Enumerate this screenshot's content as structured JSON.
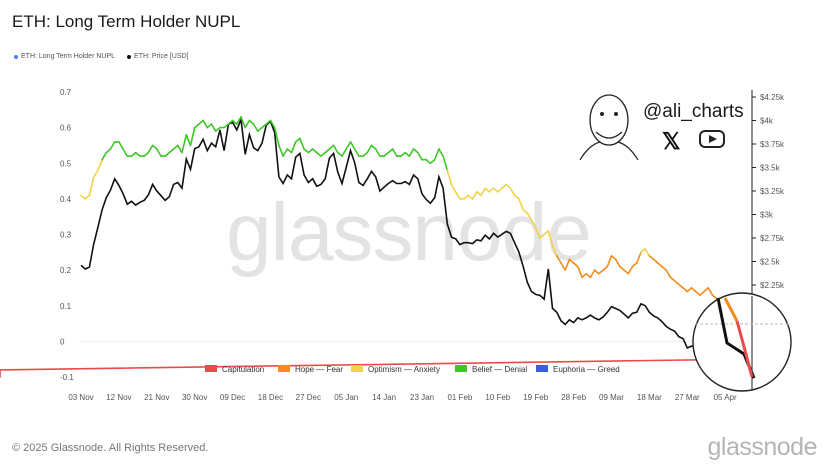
{
  "title": "ETH: Long Term Holder NUPL",
  "legend_top": [
    {
      "label": "ETH: Long Term Holder NUPL",
      "color": "#4a7bff"
    },
    {
      "label": "ETH: Price [USD]",
      "color": "#111111"
    }
  ],
  "watermark": "glassnode",
  "footer": "© 2025 Glassnode. All Rights Reserved.",
  "brand": "glassnode",
  "social": {
    "handle": "@ali_charts",
    "x_icon": "x-logo-icon",
    "youtube_icon": "youtube-icon"
  },
  "chart_data": {
    "type": "line",
    "x_tick_labels": [
      "03 Nov",
      "12 Nov",
      "21 Nov",
      "30 Nov",
      "09 Dec",
      "18 Dec",
      "27 Dec",
      "05 Jan",
      "14 Jan",
      "23 Jan",
      "01 Feb",
      "10 Feb",
      "19 Feb",
      "28 Feb",
      "09 Mar",
      "18 Mar",
      "27 Mar",
      "05 Apr"
    ],
    "y_left": {
      "ticks": [
        0.7,
        0.6,
        0.5,
        0.4,
        0.3,
        0.2,
        0.1,
        0,
        -0.1
      ],
      "labels": [
        "0.7",
        "0.6",
        "0.5",
        "0.4",
        "0.3",
        "0.2",
        "0.1",
        "0",
        "-0.1"
      ],
      "range": [
        -0.1,
        0.7
      ]
    },
    "y_right": {
      "ticks": [
        4250,
        4000,
        3750,
        3500,
        3250,
        3000,
        2750,
        2500,
        2250
      ],
      "labels": [
        "$4.25k",
        "$4k",
        "$3.75k",
        "$3.5k",
        "$3.25k",
        "$3k",
        "$2.75k",
        "$2.5k",
        "$2.25k"
      ]
    },
    "nupl_days": [
      0,
      1,
      2,
      3,
      4,
      5,
      6,
      7,
      8,
      9,
      10,
      11,
      12,
      13,
      14,
      15,
      16,
      17,
      18,
      19,
      20,
      21,
      22,
      23,
      24,
      25,
      26,
      27,
      28,
      29,
      30,
      31,
      32,
      33,
      34,
      35,
      36,
      37,
      38,
      39,
      40,
      41,
      42,
      43,
      44,
      45,
      46,
      47,
      48,
      49,
      50,
      51,
      52,
      53,
      54,
      55,
      56,
      57,
      58,
      59,
      60,
      61,
      62,
      63,
      64,
      65,
      66,
      67,
      68,
      69,
      70,
      71,
      72,
      73,
      74,
      75,
      76,
      77,
      78,
      79,
      80,
      81,
      82,
      83,
      84,
      85,
      86,
      87,
      88,
      89,
      90,
      91,
      92,
      93,
      94,
      95,
      96,
      97,
      98,
      99,
      100,
      101,
      102,
      103,
      104,
      105,
      106,
      107,
      108,
      109,
      110,
      111,
      112,
      113,
      114,
      115,
      116,
      117,
      118,
      119,
      120,
      121,
      122,
      123,
      124,
      125,
      126,
      127,
      128,
      129,
      130,
      131,
      132,
      133,
      134,
      135,
      136,
      137,
      138,
      139,
      140,
      141,
      142,
      143,
      144,
      145,
      146,
      147,
      148,
      149,
      150,
      151,
      152,
      153,
      154,
      155,
      156,
      157
    ],
    "nupl": [
      0.41,
      0.4,
      0.41,
      0.46,
      0.48,
      0.51,
      0.53,
      0.54,
      0.56,
      0.56,
      0.54,
      0.52,
      0.52,
      0.53,
      0.52,
      0.52,
      0.53,
      0.55,
      0.54,
      0.52,
      0.52,
      0.53,
      0.54,
      0.55,
      0.53,
      0.58,
      0.55,
      0.6,
      0.61,
      0.62,
      0.6,
      0.61,
      0.59,
      0.6,
      0.6,
      0.61,
      0.62,
      0.61,
      0.63,
      0.6,
      0.62,
      0.61,
      0.59,
      0.6,
      0.61,
      0.62,
      0.6,
      0.55,
      0.52,
      0.54,
      0.53,
      0.56,
      0.57,
      0.54,
      0.53,
      0.54,
      0.53,
      0.52,
      0.53,
      0.54,
      0.55,
      0.53,
      0.52,
      0.54,
      0.56,
      0.54,
      0.52,
      0.52,
      0.53,
      0.55,
      0.54,
      0.52,
      0.52,
      0.53,
      0.54,
      0.52,
      0.52,
      0.53,
      0.52,
      0.54,
      0.53,
      0.51,
      0.51,
      0.5,
      0.51,
      0.54,
      0.52,
      0.48,
      0.44,
      0.42,
      0.4,
      0.4,
      0.41,
      0.4,
      0.42,
      0.41,
      0.43,
      0.42,
      0.43,
      0.42,
      0.43,
      0.44,
      0.43,
      0.41,
      0.4,
      0.37,
      0.36,
      0.34,
      0.32,
      0.29,
      0.3,
      0.31,
      0.27,
      0.24,
      0.22,
      0.2,
      0.23,
      0.22,
      0.21,
      0.18,
      0.19,
      0.18,
      0.2,
      0.19,
      0.2,
      0.21,
      0.24,
      0.23,
      0.21,
      0.2,
      0.19,
      0.21,
      0.22,
      0.25,
      0.26,
      0.24,
      0.23,
      0.22,
      0.21,
      0.2,
      0.18,
      0.17,
      0.16,
      0.15,
      0.14,
      0.15,
      0.14,
      0.13,
      0.14,
      0.15,
      0.13,
      0.12,
      0.11,
      0.05,
      0.03,
      0.01,
      -0.02,
      -0.05,
      -0.08,
      -0.1
    ],
    "price_days": [
      0,
      1,
      2,
      3,
      4,
      5,
      6,
      7,
      8,
      9,
      10,
      11,
      12,
      13,
      14,
      15,
      16,
      17,
      18,
      19,
      20,
      21,
      22,
      23,
      24,
      25,
      26,
      27,
      28,
      29,
      30,
      31,
      32,
      33,
      34,
      35,
      36,
      37,
      38,
      39,
      40,
      41,
      42,
      43,
      44,
      45,
      46,
      47,
      48,
      49,
      50,
      51,
      52,
      53,
      54,
      55,
      56,
      57,
      58,
      59,
      60,
      61,
      62,
      63,
      64,
      65,
      66,
      67,
      68,
      69,
      70,
      71,
      72,
      73,
      74,
      75,
      76,
      77,
      78,
      79,
      80,
      81,
      82,
      83,
      84,
      85,
      86,
      87,
      88,
      89,
      90,
      91,
      92,
      93,
      94,
      95,
      96,
      97,
      98,
      99,
      100,
      101,
      102,
      103,
      104,
      105,
      106,
      107,
      108,
      109,
      110,
      111,
      112,
      113,
      114,
      115,
      116,
      117,
      118,
      119,
      120,
      121,
      122,
      123,
      124,
      125,
      126,
      127,
      128,
      129,
      130,
      131,
      132,
      133,
      134,
      135,
      136,
      137,
      138,
      139,
      140,
      141,
      142,
      143,
      144,
      145,
      146,
      147,
      148,
      149,
      150,
      151,
      152,
      153,
      154,
      155,
      156,
      157
    ],
    "price": [
      2460,
      2420,
      2440,
      2680,
      2860,
      3050,
      3180,
      3260,
      3380,
      3310,
      3220,
      3110,
      3140,
      3100,
      3130,
      3150,
      3210,
      3320,
      3250,
      3200,
      3150,
      3190,
      3320,
      3340,
      3280,
      3590,
      3480,
      3700,
      3720,
      3800,
      3680,
      3760,
      3720,
      3900,
      3680,
      3960,
      3980,
      3900,
      4010,
      3640,
      3850,
      3710,
      3680,
      3760,
      3950,
      3990,
      3870,
      3400,
      3330,
      3420,
      3380,
      3610,
      3650,
      3420,
      3340,
      3380,
      3300,
      3320,
      3380,
      3600,
      3650,
      3450,
      3330,
      3500,
      3680,
      3550,
      3340,
      3310,
      3380,
      3460,
      3400,
      3250,
      3290,
      3330,
      3360,
      3330,
      3330,
      3350,
      3320,
      3420,
      3380,
      3220,
      3160,
      3120,
      3180,
      3400,
      3280,
      2900,
      2760,
      2740,
      2680,
      2700,
      2700,
      2690,
      2730,
      2720,
      2780,
      2740,
      2800,
      2760,
      2790,
      2820,
      2800,
      2700,
      2600,
      2450,
      2280,
      2180,
      2150,
      2140,
      2100,
      2420,
      2000,
      1960,
      1870,
      1830,
      1880,
      1850,
      1900,
      1880,
      1900,
      1930,
      1900,
      1880,
      1910,
      1960,
      2020,
      2000,
      1980,
      1940,
      1900,
      1950,
      1960,
      2050,
      2030,
      1960,
      1920,
      1900,
      1860,
      1810,
      1780,
      1760,
      1700,
      1680,
      1580,
      1600,
      1590,
      1570,
      1560,
      1580,
      1550,
      1520,
      1490,
      1480,
      1470,
      1460,
      1450,
      1440
    ]
  },
  "legend_bottom": [
    {
      "label": "Capitulation",
      "color": "#e84b4b"
    },
    {
      "label": "Hope — Fear",
      "color": "#f28c1c"
    },
    {
      "label": "Optimism — Anxiety",
      "color": "#f1d24a"
    },
    {
      "label": "Belief — Denial",
      "color": "#3fc728"
    },
    {
      "label": "Euphoria — Greed",
      "color": "#3a5ae8"
    }
  ]
}
